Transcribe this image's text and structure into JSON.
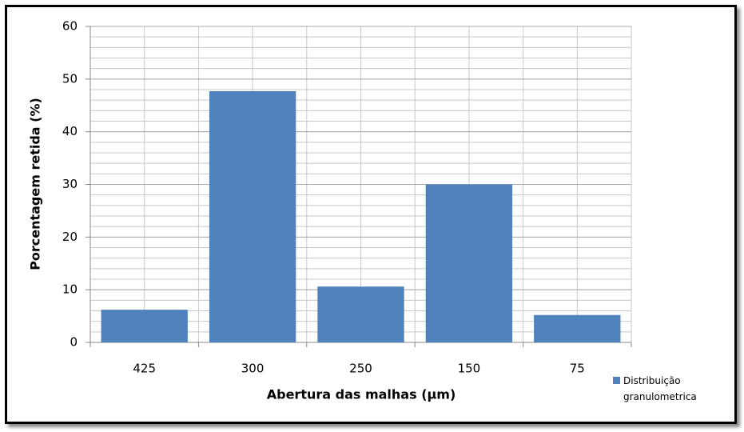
{
  "chart_data": {
    "type": "bar",
    "x_label": "Abertura das malhas (µm)",
    "y_label": "Porcentagem retida (%)",
    "categories": [
      "425",
      "300",
      "250",
      "150",
      "75"
    ],
    "series": [
      {
        "name": "Distribuição granulometrica",
        "color": "#4f81bd",
        "values": [
          6.2,
          47.7,
          10.6,
          30,
          5.2
        ]
      }
    ],
    "ylim": [
      0,
      60
    ],
    "yticks": [
      0,
      10,
      20,
      30,
      40,
      50,
      60
    ],
    "grid": true
  }
}
